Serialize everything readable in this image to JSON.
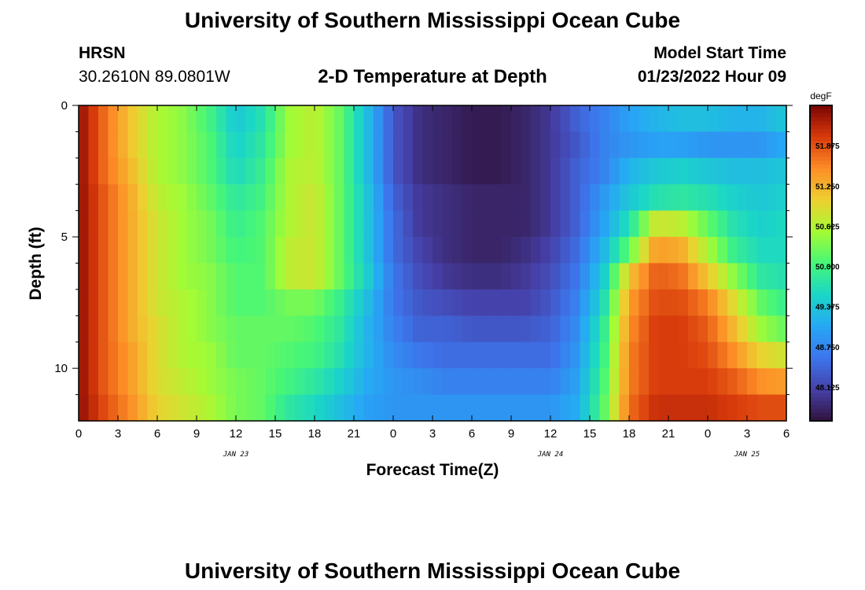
{
  "header": {
    "title": "University of Southern Mississippi Ocean Cube",
    "station": "HRSN",
    "coords": "30.2610N  89.0801W",
    "subtitle": "2-D Temperature at Depth",
    "model_start_label": "Model Start Time",
    "model_start_value": "01/23/2022 Hour 09"
  },
  "footer": {
    "title": "University of Southern Mississippi Ocean Cube"
  },
  "chart_data": {
    "type": "heatmap",
    "title": "2-D Temperature at Depth",
    "xlabel": "Forecast Time(Z)",
    "ylabel": "Depth (ft)",
    "x_ticks": [
      "0",
      "3",
      "6",
      "9",
      "12",
      "15",
      "18",
      "21",
      "0",
      "3",
      "6",
      "9",
      "12",
      "15",
      "18",
      "21",
      "0",
      "3",
      "6"
    ],
    "x_hours": [
      0,
      3,
      6,
      9,
      12,
      15,
      18,
      21,
      24,
      27,
      30,
      33,
      36,
      39,
      42,
      45,
      48,
      51,
      54
    ],
    "xlim_hours": [
      0,
      54
    ],
    "day_labels": [
      {
        "text": "JAN 23",
        "hour": 12
      },
      {
        "text": "JAN 24",
        "hour": 36
      },
      {
        "text": "JAN 25",
        "hour": 51
      }
    ],
    "y_ticks": [
      0,
      5,
      10
    ],
    "ylim": [
      0,
      12
    ],
    "y_reversed": true,
    "colorbar": {
      "unit": "degF",
      "ticks": [
        "51.875",
        "51.250",
        "50.625",
        "50.000",
        "49.375",
        "48.750",
        "48.125"
      ],
      "tick_values": [
        51.875,
        51.25,
        50.625,
        50.0,
        49.375,
        48.75,
        48.125
      ],
      "range": [
        47.6,
        52.5
      ]
    },
    "depth_levels": [
      0,
      1,
      2,
      3,
      4,
      5,
      6,
      7,
      8,
      9,
      10,
      11
    ],
    "profile_hours": [
      0,
      2,
      4,
      6,
      8,
      10,
      12,
      14,
      16,
      18,
      20,
      22,
      24,
      26,
      28,
      30,
      32,
      34,
      36,
      38,
      40,
      42,
      44,
      46,
      48,
      50,
      52,
      54
    ],
    "values": [
      [
        52.4,
        51.7,
        51.1,
        50.6,
        50.4,
        50.0,
        49.4,
        49.7,
        50.5,
        50.7,
        50.2,
        49.3,
        48.3,
        47.9,
        47.8,
        47.7,
        47.7,
        47.8,
        48.0,
        48.4,
        48.7,
        49.0,
        49.2,
        49.3,
        49.3,
        49.2,
        49.2,
        49.4
      ],
      [
        52.4,
        51.7,
        51.1,
        50.6,
        50.4,
        50.1,
        49.5,
        49.8,
        50.5,
        50.7,
        50.2,
        49.3,
        48.3,
        47.9,
        47.8,
        47.7,
        47.7,
        47.8,
        48.0,
        48.3,
        48.7,
        48.9,
        49.0,
        49.0,
        48.9,
        48.9,
        48.9,
        49.1
      ],
      [
        52.4,
        51.7,
        51.2,
        50.6,
        50.4,
        50.1,
        49.6,
        49.9,
        50.6,
        50.7,
        50.2,
        49.3,
        48.3,
        47.9,
        47.8,
        47.7,
        47.7,
        47.8,
        48.0,
        48.4,
        48.7,
        49.2,
        49.4,
        49.5,
        49.4,
        49.3,
        49.3,
        49.4
      ],
      [
        52.4,
        51.8,
        51.3,
        50.7,
        50.5,
        50.2,
        49.8,
        50.0,
        50.6,
        50.8,
        50.2,
        49.4,
        48.4,
        48.0,
        47.9,
        47.8,
        47.8,
        47.8,
        48.0,
        48.4,
        48.9,
        49.4,
        49.7,
        49.8,
        49.7,
        49.5,
        49.4,
        49.5
      ],
      [
        52.4,
        51.8,
        51.3,
        50.8,
        50.5,
        50.3,
        49.9,
        50.1,
        50.6,
        50.8,
        50.2,
        49.4,
        48.5,
        48.0,
        47.9,
        47.8,
        47.8,
        47.8,
        48.0,
        48.4,
        49.0,
        49.7,
        50.8,
        50.7,
        50.2,
        49.7,
        49.5,
        49.6
      ],
      [
        52.4,
        51.8,
        51.3,
        50.8,
        50.5,
        50.3,
        50.0,
        50.1,
        50.7,
        50.8,
        50.2,
        49.4,
        48.5,
        48.1,
        47.9,
        47.8,
        47.8,
        47.9,
        48.1,
        48.5,
        49.2,
        50.2,
        51.4,
        51.3,
        50.6,
        49.9,
        49.6,
        49.6
      ],
      [
        52.4,
        51.8,
        51.3,
        50.8,
        50.5,
        50.4,
        50.1,
        50.1,
        50.7,
        50.8,
        50.2,
        49.5,
        48.6,
        48.2,
        48.0,
        47.9,
        47.9,
        48.0,
        48.2,
        48.6,
        49.4,
        51.1,
        51.8,
        51.7,
        51.1,
        50.4,
        49.8,
        49.7
      ],
      [
        52.4,
        51.8,
        51.3,
        50.8,
        50.6,
        50.4,
        50.1,
        50.1,
        50.3,
        50.3,
        49.9,
        49.3,
        48.6,
        48.3,
        48.2,
        48.1,
        48.1,
        48.1,
        48.3,
        48.7,
        49.6,
        51.4,
        51.9,
        51.9,
        51.6,
        50.9,
        50.2,
        49.9
      ],
      [
        52.4,
        51.8,
        51.3,
        50.9,
        50.6,
        50.4,
        50.2,
        50.2,
        50.2,
        50.1,
        49.8,
        49.2,
        48.7,
        48.4,
        48.4,
        48.3,
        48.3,
        48.3,
        48.4,
        48.8,
        49.8,
        51.5,
        52.0,
        52.0,
        51.8,
        51.2,
        50.5,
        50.2
      ],
      [
        52.4,
        51.8,
        51.4,
        50.9,
        50.6,
        50.5,
        50.2,
        50.2,
        50.1,
        50.0,
        49.7,
        49.2,
        48.8,
        48.6,
        48.5,
        48.5,
        48.5,
        48.5,
        48.5,
        48.9,
        49.9,
        51.6,
        52.0,
        52.0,
        51.9,
        51.5,
        51.0,
        50.8
      ],
      [
        52.4,
        51.8,
        51.4,
        50.9,
        50.7,
        50.5,
        50.3,
        50.2,
        50.0,
        49.8,
        49.5,
        49.1,
        48.9,
        48.8,
        48.7,
        48.7,
        48.7,
        48.7,
        48.7,
        49.0,
        50.0,
        51.6,
        52.0,
        52.0,
        52.0,
        51.8,
        51.5,
        51.4
      ],
      [
        52.4,
        51.9,
        51.5,
        51.0,
        50.8,
        50.6,
        50.3,
        50.2,
        49.8,
        49.6,
        49.3,
        49.0,
        48.9,
        48.9,
        48.9,
        48.9,
        48.9,
        48.9,
        48.9,
        49.1,
        50.1,
        51.7,
        52.1,
        52.1,
        52.1,
        52.0,
        51.9,
        51.9
      ]
    ]
  }
}
